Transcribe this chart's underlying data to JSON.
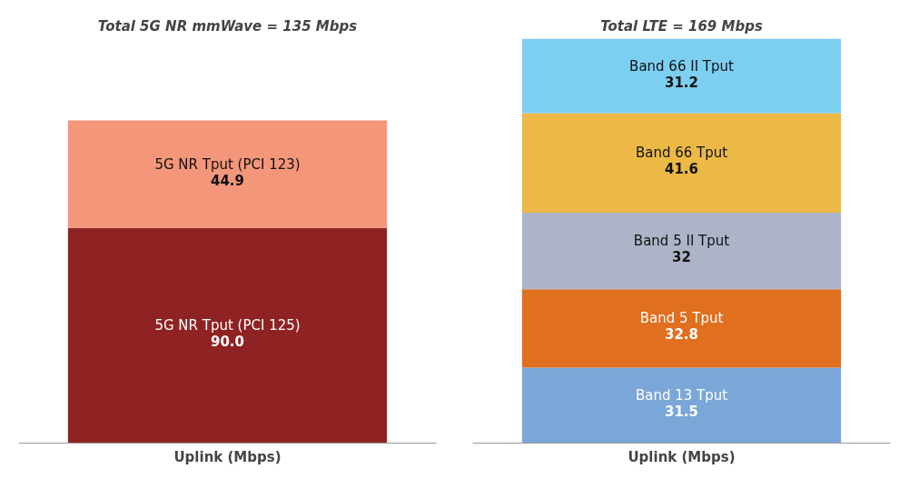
{
  "chart_data": [
    {
      "type": "bar",
      "title": "Total 5G NR mmWave = 135 Mbps",
      "xlabel": "Uplink (Mbps)",
      "categories": [
        null
      ],
      "stacked": true,
      "legend": false,
      "grid": false,
      "series": [
        {
          "name": "5G NR Tput (PCI 125)",
          "color": "#8f2323",
          "values": [
            90.0
          ],
          "value_labels": [
            "90.0"
          ]
        },
        {
          "name": "5G NR Tput (PCI 123)",
          "color": "#f4967a",
          "values": [
            44.9
          ],
          "value_labels": [
            "44.9"
          ]
        }
      ]
    },
    {
      "type": "bar",
      "title": "Total LTE = 169 Mbps",
      "xlabel": "Uplink (Mbps)",
      "categories": [
        null
      ],
      "stacked": true,
      "legend": false,
      "grid": false,
      "series": [
        {
          "name": "Band 13 Tput",
          "color": "#7ba6d8",
          "values": [
            31.5
          ],
          "value_labels": [
            "31.5"
          ]
        },
        {
          "name": "Band 5 Tput",
          "color": "#e06f1f",
          "values": [
            32.8
          ],
          "value_labels": [
            "32.8"
          ]
        },
        {
          "name": "Band 5 II Tput",
          "color": "#adb4c8",
          "values": [
            32
          ],
          "value_labels": [
            "32"
          ]
        },
        {
          "name": "Band 66 Tput",
          "color": "#ecb946",
          "values": [
            41.6
          ],
          "value_labels": [
            "41.6"
          ]
        },
        {
          "name": "Band 66 II Tput",
          "color": "#7dcff1",
          "values": [
            31.2
          ],
          "value_labels": [
            "31.2"
          ]
        }
      ]
    }
  ]
}
